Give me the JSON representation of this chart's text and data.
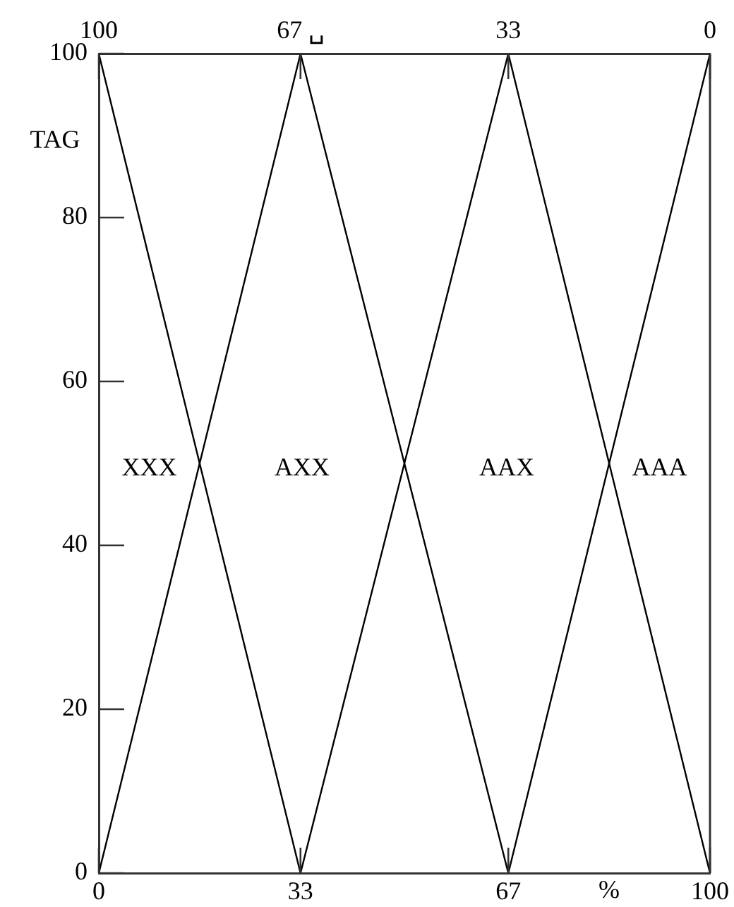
{
  "chart_data": {
    "type": "line",
    "xlabel": "%",
    "ylabel": "TAG",
    "x": [
      0,
      33,
      67,
      100
    ],
    "series": [
      {
        "color": "#000000",
        "values": [
          0,
          100,
          0,
          100
        ]
      },
      {
        "color": "#000000",
        "values": [
          100,
          0,
          100,
          0
        ]
      }
    ],
    "xlim": [
      0,
      100
    ],
    "xticks": [
      0,
      33,
      67,
      100
    ],
    "x2lim": [
      100,
      0
    ],
    "x2ticks": [
      100,
      {
        "value": 67,
        "label": "67 ␣"
      },
      33,
      0
    ],
    "ylim": [
      0,
      100
    ],
    "yticks": [
      0,
      20,
      40,
      60,
      80,
      100
    ],
    "marker": "none",
    "line_style": "solid",
    "annotations": [
      "XXX",
      "AXX",
      "AAX",
      "AAA"
    ]
  }
}
